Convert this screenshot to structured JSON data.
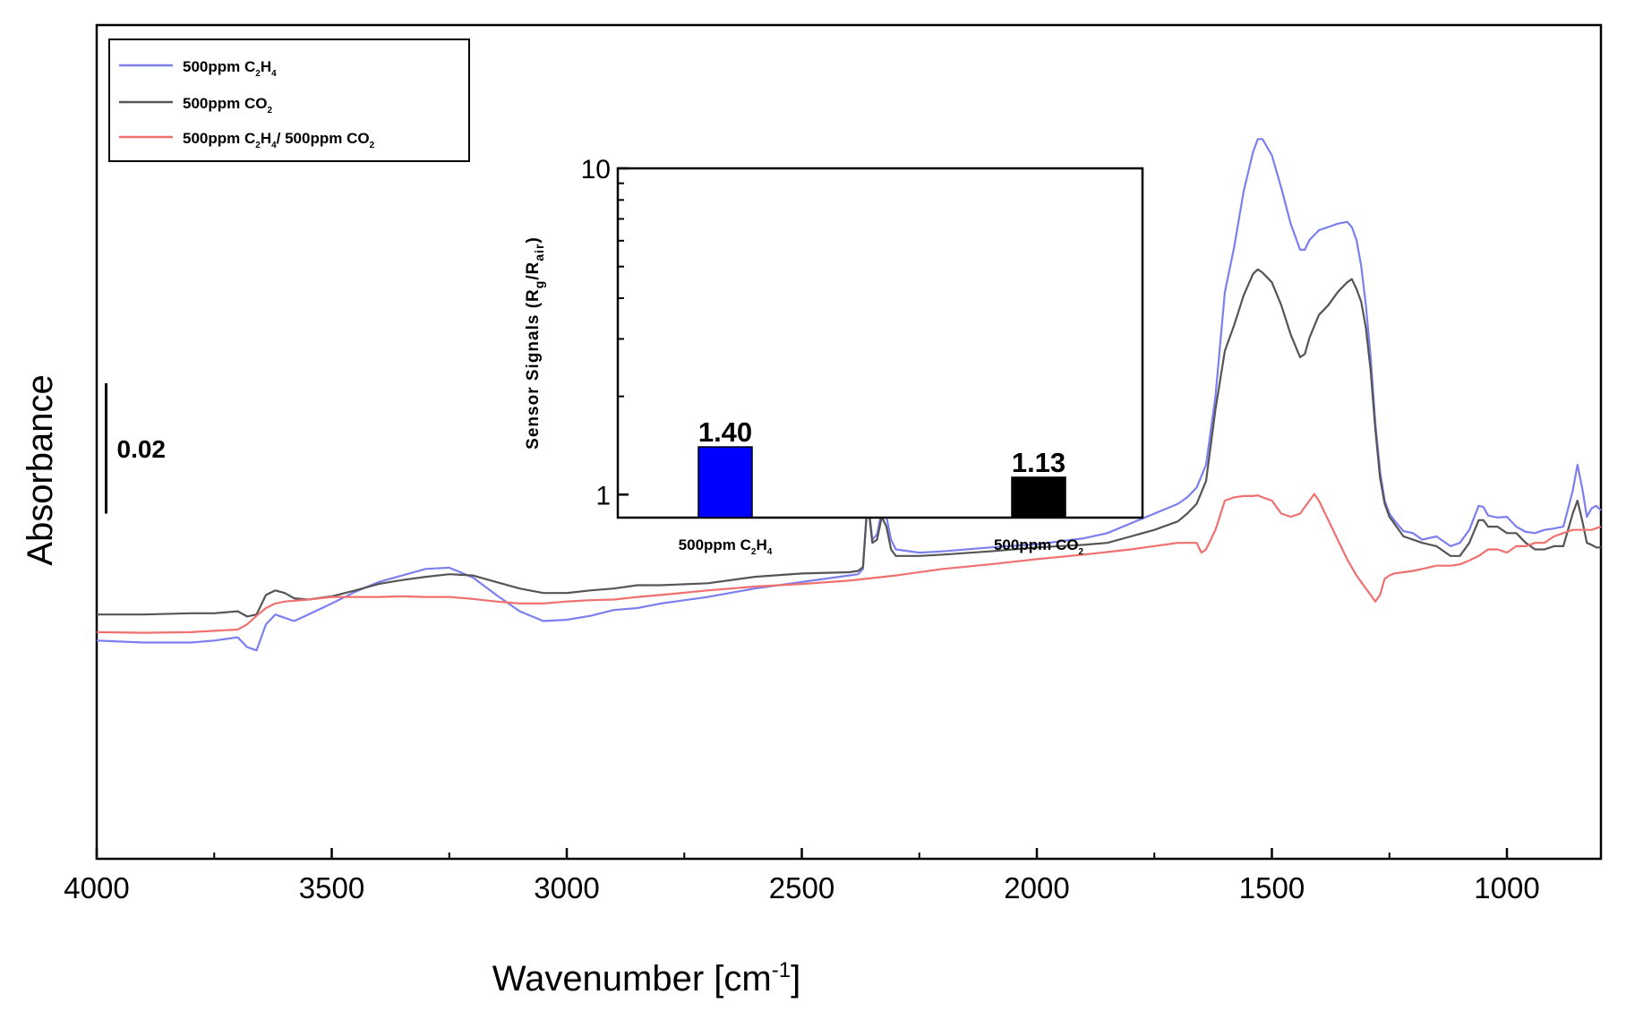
{
  "chart_data": [
    {
      "type": "line",
      "title": "",
      "xlabel": "Wavenumber [cm",
      "xlabel_sup": "-1",
      "xlabel_close": "]",
      "ylabel": "Absorbance",
      "xlim": [
        4000,
        800
      ],
      "ylim": [
        -0.053,
        0.075
      ],
      "x_ticks": [
        {
          "value": 4000,
          "label": "4000"
        },
        {
          "value": 3500,
          "label": "3500"
        },
        {
          "value": 3000,
          "label": "3000"
        },
        {
          "value": 2500,
          "label": "2500"
        },
        {
          "value": 2000,
          "label": "2000"
        },
        {
          "value": 1500,
          "label": "1500"
        },
        {
          "value": 1000,
          "label": "1000"
        }
      ],
      "x_minor_ticks": [
        3750,
        3250,
        2750,
        2250,
        1750,
        1250,
        750
      ],
      "scale_bar": {
        "label": "0.02",
        "value": 0.02,
        "x_position": 3980,
        "y_center": 0.01
      },
      "legend": {
        "placement": "top-left",
        "entries": [
          {
            "label": "500ppm C",
            "sub1": "2",
            "mid": "H",
            "sub2": "4",
            "rest": "",
            "sub3": "",
            "color": "#7b7ff0"
          },
          {
            "label": "500ppm CO",
            "sub1": "2",
            "mid": "",
            "sub2": "",
            "rest": "",
            "sub3": "",
            "color": "#555555"
          },
          {
            "label": "500ppm C",
            "sub1": "2",
            "mid": "H",
            "sub2": "4",
            "rest": "/ 500ppm CO",
            "sub3": "2",
            "color": "#f07070"
          }
        ]
      },
      "series": [
        {
          "name": "500ppm C2H4",
          "color": "#7b7ff0",
          "x": [
            4000,
            3900,
            3800,
            3750,
            3700,
            3680,
            3660,
            3640,
            3620,
            3600,
            3580,
            3550,
            3500,
            3450,
            3400,
            3350,
            3300,
            3250,
            3200,
            3150,
            3100,
            3050,
            3000,
            2950,
            2900,
            2850,
            2800,
            2700,
            2600,
            2500,
            2400,
            2380,
            2370,
            2360,
            2350,
            2340,
            2330,
            2320,
            2310,
            2300,
            2250,
            2200,
            2100,
            2000,
            1900,
            1850,
            1800,
            1750,
            1700,
            1680,
            1660,
            1640,
            1620,
            1600,
            1580,
            1560,
            1540,
            1530,
            1520,
            1500,
            1480,
            1460,
            1440,
            1430,
            1420,
            1400,
            1380,
            1360,
            1340,
            1330,
            1320,
            1310,
            1300,
            1290,
            1280,
            1270,
            1260,
            1250,
            1240,
            1220,
            1200,
            1180,
            1150,
            1120,
            1100,
            1080,
            1060,
            1050,
            1040,
            1020,
            1000,
            980,
            960,
            940,
            920,
            900,
            880,
            860,
            850,
            840,
            830,
            820,
            810,
            800
          ],
          "y": [
            -0.0195,
            -0.0198,
            -0.0198,
            -0.0195,
            -0.019,
            -0.0205,
            -0.021,
            -0.017,
            -0.0155,
            -0.016,
            -0.0165,
            -0.0155,
            -0.0138,
            -0.012,
            -0.0105,
            -0.0095,
            -0.0085,
            -0.0083,
            -0.0098,
            -0.0125,
            -0.015,
            -0.0165,
            -0.0163,
            -0.0157,
            -0.0148,
            -0.0145,
            -0.0138,
            -0.0128,
            -0.0115,
            -0.0105,
            -0.0095,
            -0.0093,
            -0.0085,
            0.0025,
            -0.004,
            -0.0032,
            0.0005,
            -0.0005,
            -0.004,
            -0.0055,
            -0.006,
            -0.0058,
            -0.0052,
            -0.0047,
            -0.0038,
            -0.003,
            -0.0015,
            0,
            0.0015,
            0.0025,
            0.004,
            0.0075,
            0.018,
            0.034,
            0.041,
            0.0495,
            0.0555,
            0.0575,
            0.0575,
            0.055,
            0.05,
            0.0445,
            0.0405,
            0.0405,
            0.042,
            0.0435,
            0.044,
            0.0445,
            0.0448,
            0.044,
            0.042,
            0.038,
            0.032,
            0.024,
            0.014,
            0.0065,
            0.002,
            0,
            -0.001,
            -0.0027,
            -0.003,
            -0.004,
            -0.0035,
            -0.005,
            -0.0045,
            -0.0025,
            0.0012,
            0.001,
            -0.0003,
            -0.0006,
            -0.0005,
            -0.002,
            -0.0028,
            -0.003,
            -0.0025,
            -0.0023,
            -0.002,
            0.0035,
            0.0075,
            0.004,
            -0.0005,
            0.0008,
            0.0012,
            0.0005
          ]
        },
        {
          "name": "500ppm CO2",
          "color": "#555555",
          "x": [
            4000,
            3900,
            3800,
            3750,
            3700,
            3680,
            3660,
            3640,
            3620,
            3600,
            3580,
            3550,
            3500,
            3450,
            3400,
            3350,
            3300,
            3250,
            3200,
            3150,
            3100,
            3050,
            3000,
            2950,
            2900,
            2850,
            2800,
            2700,
            2600,
            2500,
            2400,
            2380,
            2370,
            2360,
            2350,
            2340,
            2330,
            2320,
            2310,
            2300,
            2250,
            2200,
            2100,
            2000,
            1900,
            1850,
            1800,
            1750,
            1700,
            1680,
            1660,
            1640,
            1620,
            1600,
            1580,
            1560,
            1540,
            1530,
            1520,
            1500,
            1480,
            1460,
            1440,
            1430,
            1420,
            1400,
            1380,
            1360,
            1340,
            1330,
            1320,
            1310,
            1300,
            1290,
            1280,
            1270,
            1260,
            1250,
            1240,
            1220,
            1200,
            1180,
            1150,
            1120,
            1100,
            1080,
            1060,
            1050,
            1040,
            1020,
            1000,
            980,
            960,
            940,
            920,
            900,
            880,
            860,
            850,
            840,
            830,
            820,
            810,
            800
          ],
          "y": [
            -0.0155,
            -0.0155,
            -0.0153,
            -0.0153,
            -0.015,
            -0.0158,
            -0.0155,
            -0.0125,
            -0.0118,
            -0.0122,
            -0.013,
            -0.0132,
            -0.0127,
            -0.0118,
            -0.0108,
            -0.0102,
            -0.0097,
            -0.0093,
            -0.0095,
            -0.0105,
            -0.0115,
            -0.0122,
            -0.0122,
            -0.0118,
            -0.0115,
            -0.011,
            -0.011,
            -0.0107,
            -0.0097,
            -0.0092,
            -0.009,
            -0.0088,
            -0.0082,
            0.002,
            -0.0045,
            -0.004,
            -0.0005,
            -0.002,
            -0.0055,
            -0.0065,
            -0.0065,
            -0.0063,
            -0.0058,
            -0.0052,
            -0.0048,
            -0.0045,
            -0.0035,
            -0.0025,
            -0.0012,
            0,
            0.0015,
            0.005,
            0.016,
            0.025,
            0.029,
            0.0335,
            0.0368,
            0.0375,
            0.037,
            0.0355,
            0.032,
            0.0275,
            0.024,
            0.0245,
            0.027,
            0.0305,
            0.032,
            0.034,
            0.0355,
            0.036,
            0.0345,
            0.0325,
            0.0285,
            0.022,
            0.013,
            0.0055,
            0.0015,
            -0.0005,
            -0.0015,
            -0.0035,
            -0.004,
            -0.0045,
            -0.005,
            -0.0065,
            -0.0065,
            -0.0045,
            -0.001,
            -0.001,
            -0.002,
            -0.002,
            -0.003,
            -0.003,
            -0.0045,
            -0.0055,
            -0.0055,
            -0.005,
            -0.005,
            0,
            0.002,
            -0.001,
            -0.0045,
            -0.0048,
            -0.0052,
            -0.0052
          ]
        },
        {
          "name": "500ppm C2H4/ 500ppm CO2",
          "color": "#f07070",
          "x": [
            4000,
            3900,
            3800,
            3750,
            3700,
            3680,
            3660,
            3640,
            3620,
            3600,
            3550,
            3500,
            3450,
            3400,
            3350,
            3300,
            3250,
            3200,
            3150,
            3100,
            3050,
            3000,
            2950,
            2900,
            2850,
            2800,
            2700,
            2600,
            2500,
            2400,
            2300,
            2200,
            2100,
            2000,
            1900,
            1800,
            1700,
            1680,
            1660,
            1650,
            1640,
            1620,
            1600,
            1580,
            1560,
            1540,
            1530,
            1520,
            1500,
            1480,
            1460,
            1440,
            1420,
            1410,
            1400,
            1380,
            1360,
            1340,
            1320,
            1300,
            1290,
            1280,
            1270,
            1260,
            1250,
            1240,
            1220,
            1200,
            1180,
            1150,
            1120,
            1100,
            1080,
            1060,
            1040,
            1020,
            1000,
            980,
            960,
            940,
            920,
            900,
            880,
            860,
            840,
            820,
            800
          ],
          "y": [
            -0.0182,
            -0.0183,
            -0.0182,
            -0.018,
            -0.0178,
            -0.017,
            -0.0157,
            -0.0145,
            -0.0138,
            -0.0135,
            -0.0132,
            -0.0128,
            -0.0128,
            -0.0128,
            -0.0127,
            -0.0128,
            -0.0128,
            -0.0131,
            -0.0135,
            -0.0138,
            -0.0138,
            -0.0135,
            -0.0133,
            -0.0132,
            -0.0128,
            -0.0125,
            -0.0118,
            -0.0112,
            -0.0108,
            -0.0103,
            -0.0095,
            -0.0085,
            -0.0078,
            -0.007,
            -0.0063,
            -0.0055,
            -0.0045,
            -0.0045,
            -0.0045,
            -0.006,
            -0.0055,
            -0.0025,
            0.002,
            0.0025,
            0.0027,
            0.0027,
            0.0028,
            0.0025,
            0.002,
            0,
            -0.0005,
            0,
            0.002,
            0.003,
            0.002,
            -0.001,
            -0.004,
            -0.007,
            -0.0095,
            -0.0115,
            -0.0125,
            -0.0135,
            -0.0125,
            -0.01,
            -0.0095,
            -0.0092,
            -0.009,
            -0.0088,
            -0.0085,
            -0.008,
            -0.008,
            -0.0078,
            -0.0072,
            -0.0065,
            -0.0055,
            -0.0055,
            -0.006,
            -0.005,
            -0.005,
            -0.0045,
            -0.0045,
            -0.0035,
            -0.003,
            -0.0025,
            -0.0025,
            -0.0025,
            -0.002
          ]
        }
      ]
    },
    {
      "type": "bar",
      "placement": "inset, upper-center",
      "ylabel": "Sensor Signals (R",
      "ylabel_sub1": "g",
      "ylabel_mid": "/R",
      "ylabel_sub2": "air",
      "ylabel_close": ")",
      "yscale": "log",
      "ylim": [
        0.85,
        10
      ],
      "y_ticks": [
        {
          "value": 1,
          "label": "1"
        },
        {
          "value": 10,
          "label": "10"
        }
      ],
      "y_minor_ticks": [
        2,
        3,
        4,
        5,
        6,
        7,
        8,
        9
      ],
      "categories": [
        {
          "label": "500ppm C",
          "sub1": "2",
          "mid": "H",
          "sub2": "4"
        },
        {
          "label": "500ppm CO",
          "sub1": "2",
          "mid": "",
          "sub2": ""
        }
      ],
      "values": [
        1.4,
        1.13
      ],
      "value_labels": [
        "1.40",
        "1.13"
      ],
      "colors": [
        "#0000ff",
        "#000000"
      ]
    }
  ]
}
